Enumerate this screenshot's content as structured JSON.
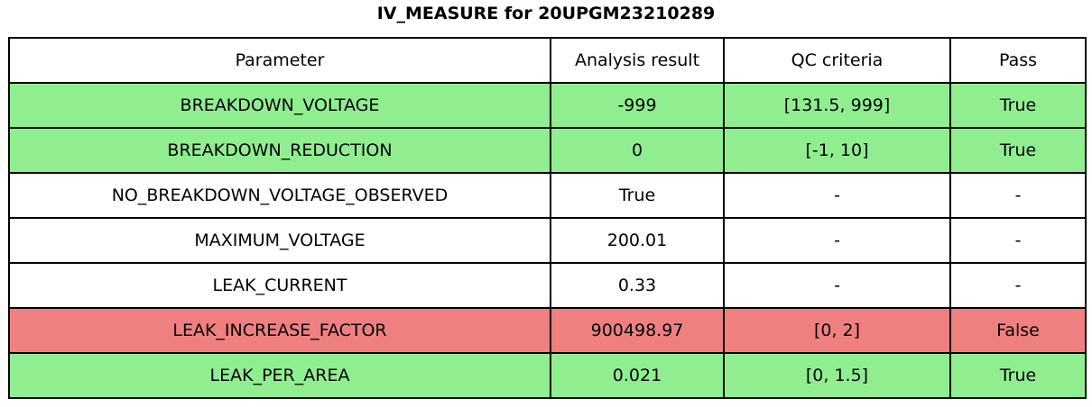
{
  "chart_data": {
    "type": "table",
    "title": "IV_MEASURE for 20UPGM23210289",
    "columns": [
      "Parameter",
      "Analysis result",
      "QC criteria",
      "Pass"
    ],
    "rows": [
      {
        "parameter": "BREAKDOWN_VOLTAGE",
        "analysis_result": "-999",
        "qc_criteria": "[131.5, 999]",
        "pass": "True",
        "row_status": "pass"
      },
      {
        "parameter": "BREAKDOWN_REDUCTION",
        "analysis_result": "0",
        "qc_criteria": "[-1, 10]",
        "pass": "True",
        "row_status": "pass"
      },
      {
        "parameter": "NO_BREAKDOWN_VOLTAGE_OBSERVED",
        "analysis_result": "True",
        "qc_criteria": "-",
        "pass": "-",
        "row_status": "neutral"
      },
      {
        "parameter": "MAXIMUM_VOLTAGE",
        "analysis_result": "200.01",
        "qc_criteria": "-",
        "pass": "-",
        "row_status": "neutral"
      },
      {
        "parameter": "LEAK_CURRENT",
        "analysis_result": "0.33",
        "qc_criteria": "-",
        "pass": "-",
        "row_status": "neutral"
      },
      {
        "parameter": "LEAK_INCREASE_FACTOR",
        "analysis_result": "900498.97",
        "qc_criteria": "[0, 2]",
        "pass": "False",
        "row_status": "fail"
      },
      {
        "parameter": "LEAK_PER_AREA",
        "analysis_result": "0.021",
        "qc_criteria": "[0, 1.5]",
        "pass": "True",
        "row_status": "pass"
      }
    ]
  },
  "colors": {
    "pass_row": "#90EE90",
    "fail_row": "#F08080",
    "neutral_row": "#FFFFFF",
    "border": "#000000"
  }
}
